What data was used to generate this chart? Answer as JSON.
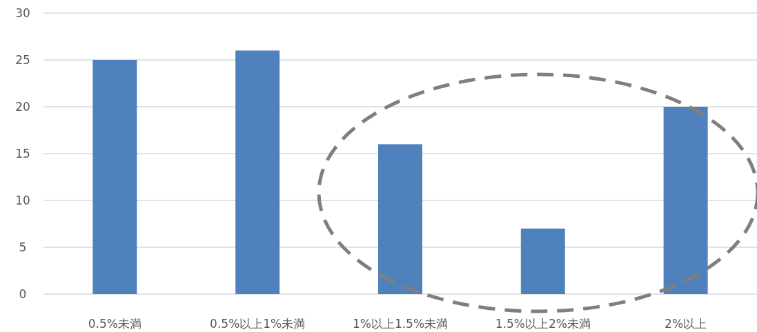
{
  "chart_data": {
    "type": "bar",
    "categories": [
      "0.5%未満",
      "0.5%以上1%未満",
      "1%以上1.5%未満",
      "1.5%以上2%未満",
      "2%以上"
    ],
    "values": [
      25,
      26,
      16,
      7,
      20
    ],
    "color": "#4f81bd",
    "ylim": [
      0,
      30
    ],
    "yticks": [
      0,
      5,
      10,
      15,
      20,
      25,
      30
    ],
    "grid": "y"
  }
}
